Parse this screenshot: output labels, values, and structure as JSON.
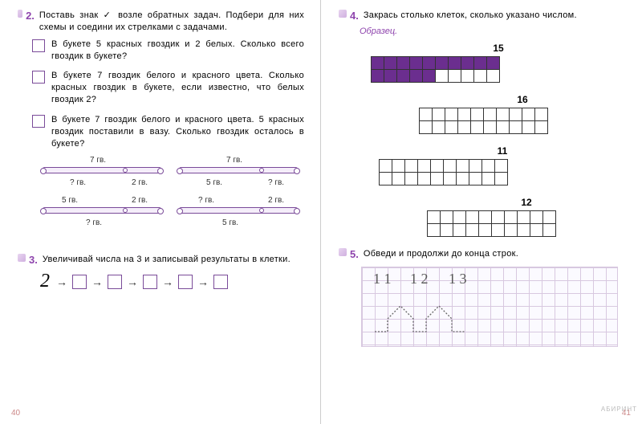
{
  "pageLeft": 40,
  "pageRight": 41,
  "task2": {
    "num": "2.",
    "prompt": "Поставь знак ✓ возле обратных задач. Подбери для них схемы и соедини их стрелками с задачами.",
    "items": [
      {
        "checked": false,
        "text": "В букете 5 красных гвоздик и 2 белых. Сколько всего гвоздик в букете?"
      },
      {
        "checked": false,
        "text": "В букете 7 гвоздик белого и красного цвета. Сколько красных гвоздик в букете, если известно, что белых гвоздик 2?"
      },
      {
        "checked": false,
        "text": "В букете 7 гвоздик белого и красного цвета. 5 красных гвоздик поставили в вазу. Сколько гвоздик осталось в букете?"
      }
    ],
    "schemes": {
      "s1": {
        "top": "7 гв.",
        "left": "? гв.",
        "right": "2 гв."
      },
      "s2": {
        "top": "7 гв.",
        "left": "5 гв.",
        "right": "? гв."
      },
      "s3": {
        "topL": "5 гв.",
        "topR": "2 гв.",
        "bottom": "? гв."
      },
      "s4": {
        "topL": "? гв.",
        "topR": "2 гв.",
        "bottom": "5 гв."
      }
    }
  },
  "task3": {
    "num": "3.",
    "prompt": "Увеличивай числа на 3 и записывай результаты в клетки.",
    "start": "2"
  },
  "task4": {
    "num": "4.",
    "prompt": "Закрась столько клеток, сколько указано числом.",
    "sample": "Образец.",
    "grids": [
      {
        "label": "15",
        "cols": 10,
        "rows": 2,
        "fill": 15
      },
      {
        "label": "16",
        "cols": 10,
        "rows": 2,
        "fill": 0
      },
      {
        "label": "11",
        "cols": 10,
        "rows": 2,
        "fill": 0
      },
      {
        "label": "12",
        "cols": 10,
        "rows": 2,
        "fill": 0
      }
    ]
  },
  "task5": {
    "num": "5.",
    "prompt": "Обведи и продолжи до конца строк.",
    "digits": [
      "1 1",
      "1 2",
      "1 3"
    ]
  },
  "colors": {
    "accent": "#8e44ad",
    "fill": "#6b2e8f",
    "grid": "#d8c8e0"
  }
}
